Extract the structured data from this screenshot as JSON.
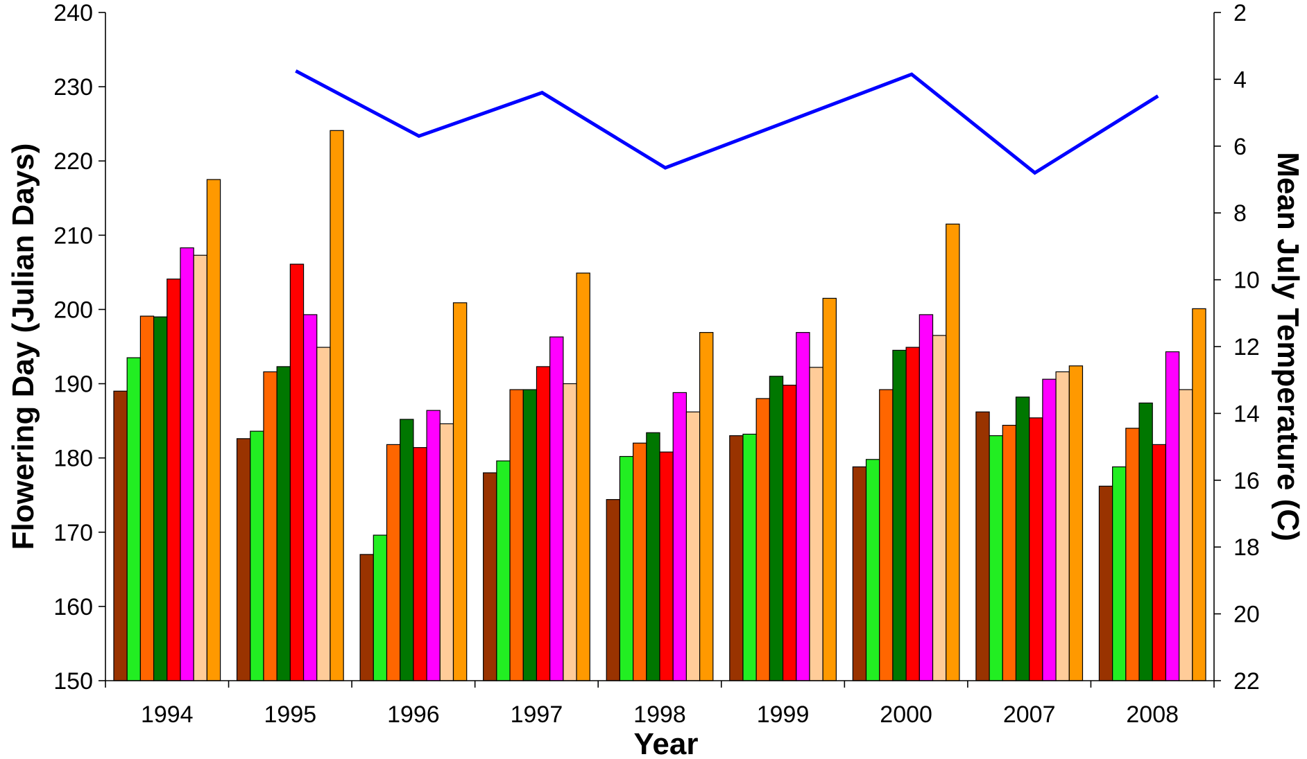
{
  "chart_data": {
    "type": "bar",
    "categories": [
      "1994",
      "1995",
      "1996",
      "1997",
      "1998",
      "1999",
      "2000",
      "2007",
      "2008"
    ],
    "xlabel": "Year",
    "ylabel": "Flowering Day (Julian Days)",
    "y2label": "Mean July Temperature (C)",
    "ylim": [
      150,
      240
    ],
    "yticks": [
      150,
      160,
      170,
      180,
      190,
      200,
      210,
      220,
      230,
      240
    ],
    "y2lim": [
      22,
      2
    ],
    "y2ticks": [
      2,
      4,
      6,
      8,
      10,
      12,
      14,
      16,
      18,
      20,
      22
    ],
    "y2_reversed": true,
    "grid": false,
    "series": [
      {
        "color": "#993300",
        "values": [
          189.0,
          182.6,
          167.0,
          178.0,
          174.4,
          183.0,
          178.8,
          186.2,
          176.2
        ]
      },
      {
        "color": "#22EE22",
        "values": [
          193.5,
          183.6,
          169.6,
          179.6,
          180.2,
          183.2,
          179.8,
          183.0,
          178.8
        ]
      },
      {
        "color": "#FF6600",
        "values": [
          199.1,
          191.6,
          181.8,
          189.2,
          182.0,
          188.0,
          189.2,
          184.4,
          184.0
        ]
      },
      {
        "color": "#007700",
        "values": [
          199.0,
          192.3,
          185.2,
          189.2,
          183.4,
          191.0,
          194.5,
          188.2,
          187.4
        ]
      },
      {
        "color": "#FF0000",
        "values": [
          204.1,
          206.1,
          181.4,
          192.3,
          180.8,
          189.8,
          194.9,
          185.4,
          181.8
        ]
      },
      {
        "color": "#FF00FF",
        "values": [
          208.3,
          199.3,
          186.4,
          196.3,
          188.8,
          196.9,
          199.3,
          190.6,
          194.3
        ]
      },
      {
        "color": "#FFCC99",
        "values": [
          207.3,
          194.9,
          184.6,
          190.0,
          186.2,
          192.2,
          196.5,
          191.6,
          189.2
        ]
      },
      {
        "color": "#FF9900",
        "values": [
          217.5,
          224.1,
          200.9,
          204.9,
          196.9,
          201.5,
          211.5,
          192.4,
          200.1
        ]
      }
    ],
    "line_series": {
      "color": "#0000FF",
      "axis": "right",
      "categories": [
        "1995",
        "1996",
        "1997",
        "1998",
        "1999",
        "2000",
        "2007",
        "2008"
      ],
      "values": [
        3.75,
        5.7,
        4.4,
        6.65,
        5.25,
        3.85,
        6.8,
        4.5
      ]
    }
  }
}
